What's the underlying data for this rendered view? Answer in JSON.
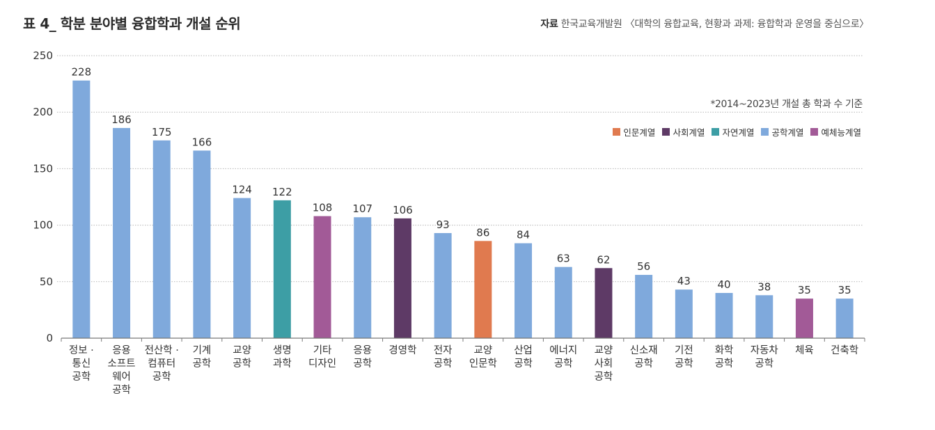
{
  "header": {
    "title": "표 4_ 학분 분야별 융합학과 개설 순위",
    "source_label": "자료",
    "source_text": "한국교육개발원 〈대학의 융합교육, 현황과 과제: 융합학과 운영을 중심으로〉",
    "note": "*2014~2023년 개설 총 학과 수 기준"
  },
  "colors": {
    "인문계열": "#e07a4f",
    "사회계열": "#5e3a66",
    "자연계열": "#3d9ea5",
    "공학계열": "#7fa9dc",
    "예체능계열": "#a25a97",
    "axis": "#777777",
    "grid": "#b5b5b5"
  },
  "chart_data": {
    "type": "bar",
    "title": "표 4_ 학분 분야별 융합학과 개설 순위",
    "xlabel": "",
    "ylabel": "",
    "ylim": [
      0,
      250
    ],
    "yticks": [
      0,
      50,
      100,
      150,
      200,
      250
    ],
    "grid": true,
    "legend_position": "top-right",
    "legend": [
      "인문계열",
      "사회계열",
      "자연계열",
      "공학계열",
      "예체능계열"
    ],
    "categories": [
      "정보 · 통신 공학",
      "응용 소프트 웨어 공학",
      "전산학 · 컴퓨터 공학",
      "기계 공학",
      "교양 공학",
      "생명 과학",
      "기타 디자인",
      "응용 공학",
      "경영학",
      "전자 공학",
      "교양 인문학",
      "산업 공학",
      "에너지 공학",
      "교양 사회 공학",
      "신소재 공학",
      "기전 공학",
      "화학 공학",
      "자동차 공학",
      "체육",
      "건축학"
    ],
    "category_lines": [
      [
        "정보 ·",
        "통신",
        "공학"
      ],
      [
        "응용",
        "소프트",
        "웨어",
        "공학"
      ],
      [
        "전산학 ·",
        "컴퓨터",
        "공학"
      ],
      [
        "기계",
        "공학"
      ],
      [
        "교양",
        "공학"
      ],
      [
        "생명",
        "과학"
      ],
      [
        "기타",
        "디자인"
      ],
      [
        "응용",
        "공학"
      ],
      [
        "경영학"
      ],
      [
        "전자",
        "공학"
      ],
      [
        "교양",
        "인문학"
      ],
      [
        "산업",
        "공학"
      ],
      [
        "에너지",
        "공학"
      ],
      [
        "교양",
        "사회",
        "공학"
      ],
      [
        "신소재",
        "공학"
      ],
      [
        "기전",
        "공학"
      ],
      [
        "화학",
        "공학"
      ],
      [
        "자동차",
        "공학"
      ],
      [
        "체육"
      ],
      [
        "건축학"
      ]
    ],
    "values": [
      228,
      186,
      175,
      166,
      124,
      122,
      108,
      107,
      106,
      93,
      86,
      84,
      63,
      62,
      56,
      43,
      40,
      38,
      35,
      35
    ],
    "groups": [
      "공학계열",
      "공학계열",
      "공학계열",
      "공학계열",
      "공학계열",
      "자연계열",
      "예체능계열",
      "공학계열",
      "사회계열",
      "공학계열",
      "인문계열",
      "공학계열",
      "공학계열",
      "사회계열",
      "공학계열",
      "공학계열",
      "공학계열",
      "공학계열",
      "예체능계열",
      "공학계열"
    ]
  }
}
